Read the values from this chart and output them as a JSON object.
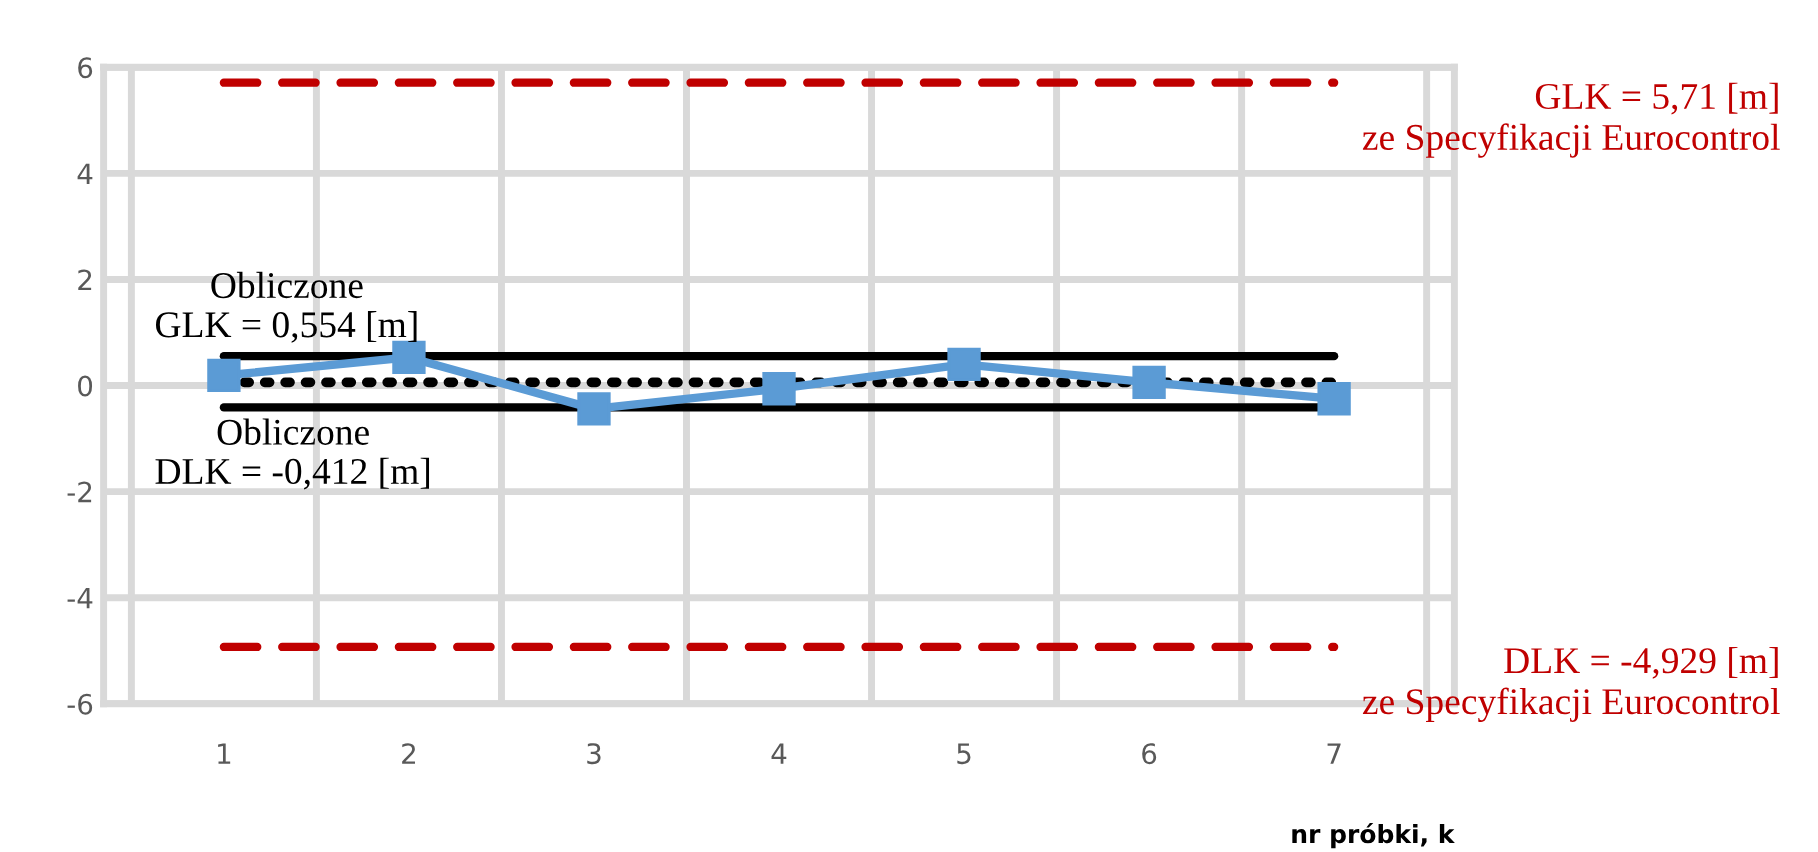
{
  "chart_data": {
    "type": "line",
    "xlabel": "nr próbki, k",
    "categories": [
      "1",
      "2",
      "3",
      "4",
      "5",
      "6",
      "7"
    ],
    "series": [
      {
        "color": "#5b9bd5",
        "values": [
          0.19,
          0.53,
          -0.44,
          -0.06,
          0.4,
          0.06,
          -0.25
        ]
      }
    ],
    "marker": "square",
    "line_style": "solid",
    "ylim": [
      -6,
      6
    ],
    "yticks": [
      -6,
      -4,
      -2,
      0,
      2,
      4,
      6
    ],
    "grid": true,
    "legend": false,
    "ref_lines": [
      {
        "axis": "y",
        "value": 5.71,
        "label": "GLK = 5,71 [m]\nze Specyfikacji Eurocontrol",
        "color": "#c00000",
        "line_style": "dashed"
      },
      {
        "axis": "y",
        "value": -4.929,
        "label": "DLK = -4,929 [m]\nze Specyfikacji Eurocontrol",
        "color": "#c00000",
        "line_style": "dashed"
      },
      {
        "axis": "y",
        "value": 0.554,
        "label": "Obliczone\nGLK = 0,554 [m]",
        "color": "#000000",
        "line_style": "solid"
      },
      {
        "axis": "y",
        "value": -0.412,
        "label": "Obliczone\nDLK = -0,412 [m]",
        "color": "#000000",
        "line_style": "solid"
      },
      {
        "axis": "y",
        "value": 0.06,
        "color": "#000000",
        "line_style": "dotted"
      }
    ]
  }
}
